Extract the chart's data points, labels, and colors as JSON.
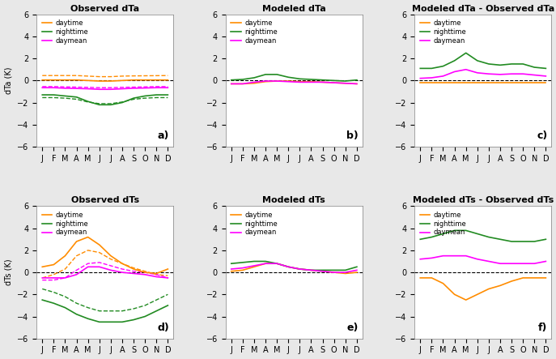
{
  "months": [
    "J",
    "F",
    "M",
    "A",
    "M",
    "J",
    "J",
    "A",
    "S",
    "O",
    "N",
    "D"
  ],
  "titles": [
    "Observed dTa",
    "Modeled dTa",
    "Modeled dTa - Observed dTa",
    "Observed dTs",
    "Modeled dTs",
    "Modeled dTs - Observed dTs"
  ],
  "panel_labels": [
    "a)",
    "b)",
    "c)",
    "d)",
    "e)",
    "f)"
  ],
  "ylabel_top": "dTa (K)",
  "ylabel_bot": "dTs (K)",
  "colors": {
    "daytime": "#FF8C00",
    "nighttime": "#228B22",
    "daymean": "#FF00FF"
  },
  "panel_a": {
    "daytime_solid": [
      0.05,
      0.05,
      0.05,
      0.05,
      0.0,
      -0.05,
      -0.05,
      0.0,
      0.05,
      0.05,
      0.05,
      0.05
    ],
    "daytime_dashed": [
      0.45,
      0.45,
      0.45,
      0.45,
      0.4,
      0.35,
      0.35,
      0.4,
      0.42,
      0.43,
      0.44,
      0.45
    ],
    "nighttime_solid": [
      -1.3,
      -1.3,
      -1.4,
      -1.5,
      -1.9,
      -2.2,
      -2.2,
      -2.0,
      -1.6,
      -1.4,
      -1.3,
      -1.3
    ],
    "nighttime_dashed": [
      -1.55,
      -1.55,
      -1.6,
      -1.7,
      -1.95,
      -2.1,
      -2.1,
      -1.95,
      -1.7,
      -1.6,
      -1.55,
      -1.55
    ],
    "daymean_solid": [
      -0.65,
      -0.65,
      -0.7,
      -0.72,
      -0.75,
      -0.8,
      -0.8,
      -0.75,
      -0.7,
      -0.68,
      -0.65,
      -0.65
    ],
    "daymean_dashed": [
      -0.55,
      -0.55,
      -0.58,
      -0.6,
      -0.62,
      -0.65,
      -0.65,
      -0.62,
      -0.6,
      -0.58,
      -0.55,
      -0.55
    ]
  },
  "panel_b": {
    "daytime_solid": [
      -0.3,
      -0.3,
      -0.25,
      -0.1,
      -0.05,
      -0.05,
      -0.1,
      -0.1,
      -0.15,
      -0.2,
      -0.25,
      -0.3
    ],
    "nighttime_solid": [
      0.05,
      0.1,
      0.25,
      0.55,
      0.55,
      0.3,
      0.15,
      0.1,
      0.05,
      0.0,
      -0.05,
      0.05
    ],
    "daymean_solid": [
      -0.3,
      -0.3,
      -0.15,
      -0.05,
      -0.05,
      -0.1,
      -0.15,
      -0.15,
      -0.15,
      -0.2,
      -0.25,
      -0.3
    ]
  },
  "panel_c": {
    "daytime_solid": [
      -0.2,
      -0.2,
      -0.2,
      -0.2,
      -0.2,
      -0.2,
      -0.2,
      -0.2,
      -0.2,
      -0.2,
      -0.2,
      -0.2
    ],
    "nighttime_solid": [
      1.1,
      1.1,
      1.3,
      1.8,
      2.5,
      1.8,
      1.5,
      1.4,
      1.5,
      1.5,
      1.2,
      1.1
    ],
    "daymean_solid": [
      0.2,
      0.25,
      0.4,
      0.8,
      1.0,
      0.7,
      0.6,
      0.55,
      0.6,
      0.6,
      0.5,
      0.4
    ]
  },
  "panel_d": {
    "daytime_solid": [
      0.5,
      0.7,
      1.5,
      2.8,
      3.2,
      2.5,
      1.5,
      0.8,
      0.3,
      0.0,
      -0.1,
      0.3
    ],
    "daytime_dashed": [
      -0.5,
      -0.2,
      0.3,
      1.5,
      2.0,
      1.8,
      1.2,
      0.8,
      0.4,
      0.1,
      -0.2,
      -0.3
    ],
    "nighttime_solid": [
      -2.5,
      -2.8,
      -3.2,
      -3.8,
      -4.2,
      -4.5,
      -4.5,
      -4.5,
      -4.3,
      -4.0,
      -3.5,
      -3.0
    ],
    "nighttime_dashed": [
      -1.5,
      -1.8,
      -2.2,
      -2.8,
      -3.2,
      -3.5,
      -3.5,
      -3.5,
      -3.3,
      -3.0,
      -2.5,
      -2.0
    ],
    "daymean_solid": [
      -0.5,
      -0.5,
      -0.5,
      -0.2,
      0.5,
      0.5,
      0.2,
      0.0,
      -0.1,
      -0.2,
      -0.4,
      -0.5
    ],
    "daymean_dashed": [
      -0.7,
      -0.7,
      -0.5,
      0.2,
      0.8,
      0.9,
      0.6,
      0.3,
      0.1,
      0.0,
      -0.2,
      -0.5
    ]
  },
  "panel_e": {
    "daytime_solid": [
      0.1,
      0.2,
      0.5,
      0.8,
      0.8,
      0.5,
      0.3,
      0.2,
      0.1,
      0.0,
      -0.1,
      0.0
    ],
    "nighttime_solid": [
      0.8,
      0.9,
      1.0,
      1.0,
      0.8,
      0.5,
      0.3,
      0.2,
      0.2,
      0.2,
      0.2,
      0.5
    ],
    "daymean_solid": [
      0.3,
      0.4,
      0.6,
      0.8,
      0.8,
      0.5,
      0.3,
      0.2,
      0.1,
      0.0,
      0.0,
      0.2
    ]
  },
  "panel_f": {
    "daytime_solid": [
      -0.5,
      -0.5,
      -1.0,
      -2.0,
      -2.5,
      -2.0,
      -1.5,
      -1.2,
      -0.8,
      -0.5,
      -0.5,
      -0.5
    ],
    "nighttime_solid": [
      3.0,
      3.2,
      3.5,
      3.8,
      3.8,
      3.5,
      3.2,
      3.0,
      2.8,
      2.8,
      2.8,
      3.0
    ],
    "daymean_solid": [
      1.2,
      1.3,
      1.5,
      1.5,
      1.5,
      1.2,
      1.0,
      0.8,
      0.8,
      0.8,
      0.8,
      1.0
    ]
  }
}
